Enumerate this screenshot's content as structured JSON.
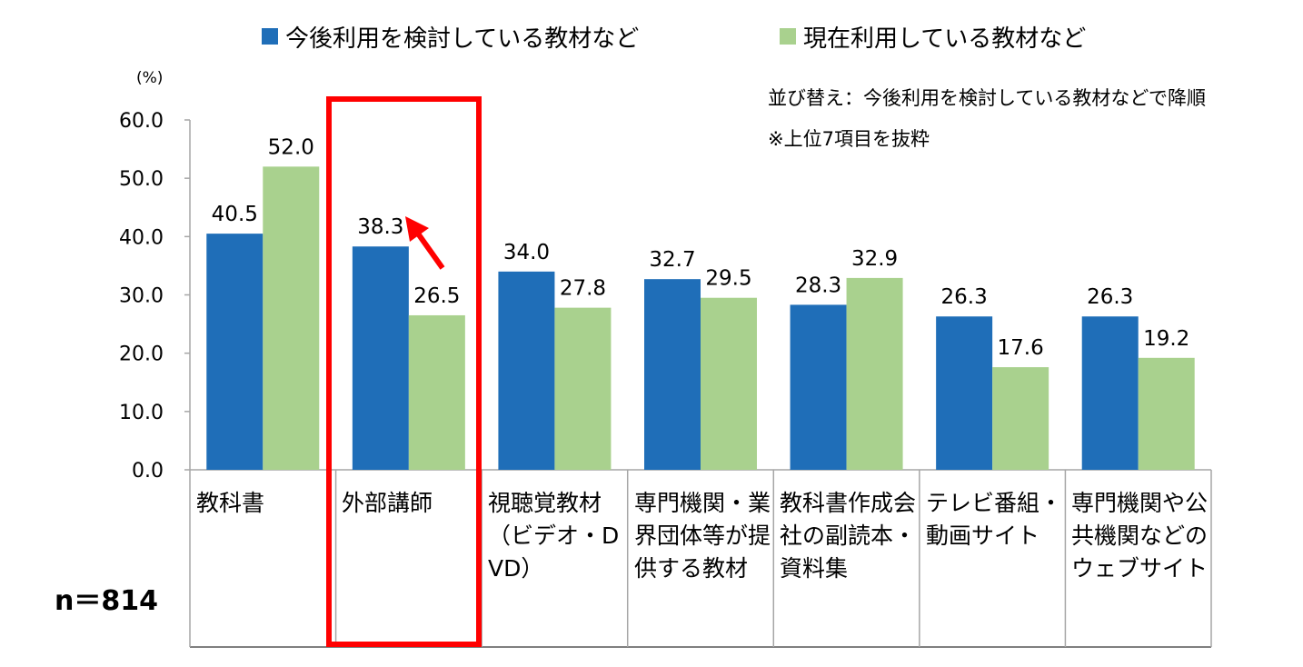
{
  "legend": [
    {
      "label": "今後利用を検討している教材など",
      "color": "#1f6eb8"
    },
    {
      "label": "現在利用している教材など",
      "color": "#a9d18e"
    }
  ],
  "unit_label": "(%)",
  "notes": [
    "並び替え：今後利用を検討している教材などで降順",
    "※上位7項目を抜粋"
  ],
  "sample_size": "n＝814",
  "chart_data": {
    "type": "bar",
    "title": "",
    "xlabel": "",
    "ylabel": "(%)",
    "ylim": [
      0,
      60
    ],
    "yticks": [
      "0.0",
      "10.0",
      "20.0",
      "30.0",
      "40.0",
      "50.0",
      "60.0"
    ],
    "categories": [
      "教科書",
      "外部講師",
      "視聴覚教材（ビデオ・DVD）",
      "専門機関・業界団体等が提供する教材",
      "教科書作成会社の副読本・資料集",
      "テレビ番組・動画サイト",
      "専門機関や公共機関などのウェブサイト"
    ],
    "series": [
      {
        "name": "今後利用を検討している教材など",
        "color": "#1f6eb8",
        "values": [
          40.5,
          38.3,
          34.0,
          32.7,
          28.3,
          26.3,
          26.3
        ],
        "labels": [
          "40.5",
          "38.3",
          "34.0",
          "32.7",
          "28.3",
          "26.3",
          "26.3"
        ]
      },
      {
        "name": "現在利用している教材など",
        "color": "#a9d18e",
        "values": [
          52.0,
          26.5,
          27.8,
          29.5,
          32.9,
          17.6,
          19.2
        ],
        "labels": [
          "52.0",
          "26.5",
          "27.8",
          "29.5",
          "32.9",
          "17.6",
          "19.2"
        ]
      }
    ],
    "highlight_category": "外部講師"
  }
}
